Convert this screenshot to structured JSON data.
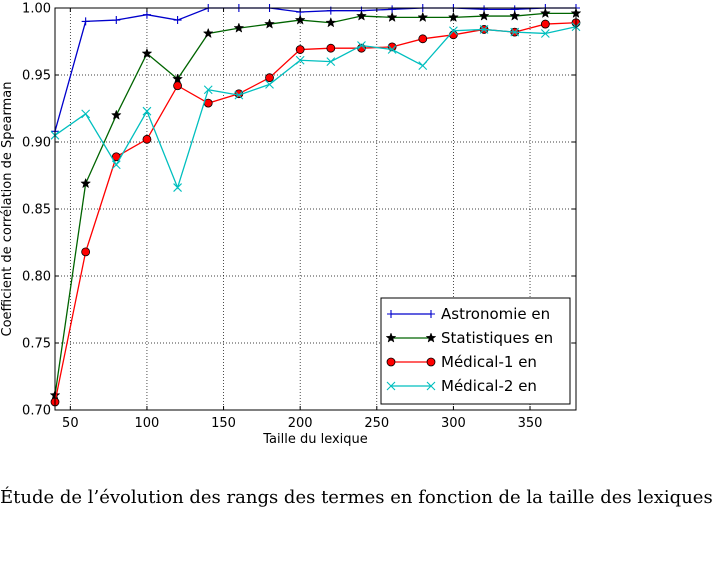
{
  "caption": "Étude de l’évolution des rangs des termes en fonction de la taille des lexiques",
  "chart_data": {
    "type": "line",
    "xlabel": "Taille du lexique",
    "ylabel": "Coefficient de corrélation de Spearman",
    "xlim": [
      40,
      380
    ],
    "ylim": [
      0.7,
      1.0
    ],
    "xticks": [
      50,
      100,
      150,
      200,
      250,
      300,
      350
    ],
    "yticks": [
      0.7,
      0.75,
      0.8,
      0.85,
      0.9,
      0.95,
      1.0
    ],
    "xtick_labels": [
      "50",
      "100",
      "150",
      "200",
      "250",
      "300",
      "350"
    ],
    "ytick_labels": [
      "0.70",
      "0.75",
      "0.80",
      "0.85",
      "0.90",
      "0.95",
      "1.00"
    ],
    "grid": true,
    "legend_position": "lower-right",
    "x": [
      40,
      60,
      80,
      100,
      120,
      140,
      160,
      180,
      200,
      220,
      240,
      260,
      280,
      300,
      320,
      340,
      360,
      380
    ],
    "series": [
      {
        "name": "Astronomie en",
        "color": "#0000cc",
        "marker": "plus",
        "values": [
          0.908,
          0.99,
          0.991,
          0.995,
          0.991,
          1.0,
          1.0,
          1.0,
          0.997,
          0.998,
          0.998,
          0.999,
          1.0,
          1.0,
          0.999,
          0.999,
          1.0,
          1.0
        ]
      },
      {
        "name": "Statistiques en",
        "color": "#006400",
        "marker": "star",
        "values": [
          0.711,
          0.869,
          0.92,
          0.966,
          0.947,
          0.981,
          0.985,
          0.988,
          0.991,
          0.989,
          0.994,
          0.993,
          0.993,
          0.993,
          0.994,
          0.994,
          0.996,
          0.996
        ]
      },
      {
        "name": "Médical-1 en",
        "color": "#ff0000",
        "marker": "circle",
        "values": [
          0.706,
          0.818,
          0.889,
          0.902,
          0.942,
          0.929,
          0.936,
          0.948,
          0.969,
          0.97,
          0.97,
          0.971,
          0.977,
          0.98,
          0.984,
          0.982,
          0.988,
          0.989
        ]
      },
      {
        "name": "Médical-2 en",
        "color": "#00bfbf",
        "marker": "x",
        "values": [
          0.905,
          0.921,
          0.883,
          0.923,
          0.866,
          0.939,
          0.935,
          0.943,
          0.961,
          0.96,
          0.972,
          0.969,
          0.957,
          0.983,
          0.984,
          0.982,
          0.981,
          0.986
        ]
      }
    ]
  }
}
